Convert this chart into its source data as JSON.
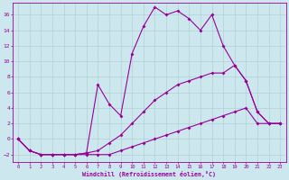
{
  "xlabel": "Windchill (Refroidissement éolien,°C)",
  "bg_color": "#cce8ee",
  "line_color": "#990099",
  "grid_color": "#aacccc",
  "xlim": [
    -0.5,
    23.5
  ],
  "ylim": [
    -3.0,
    17.5
  ],
  "xticks": [
    0,
    1,
    2,
    3,
    4,
    5,
    6,
    7,
    8,
    9,
    10,
    11,
    12,
    13,
    14,
    15,
    16,
    17,
    18,
    19,
    20,
    21,
    22,
    23
  ],
  "yticks": [
    -2,
    0,
    2,
    4,
    6,
    8,
    10,
    12,
    14,
    16
  ],
  "line1_x": [
    0,
    1,
    2,
    3,
    4,
    5,
    6,
    7,
    8,
    9,
    10,
    11,
    12,
    13,
    14,
    15,
    16,
    17,
    18,
    19,
    20,
    21,
    22,
    23
  ],
  "line1_y": [
    0.0,
    -1.5,
    -2.0,
    -2.0,
    -2.0,
    -2.0,
    -2.0,
    -2.0,
    -2.0,
    -1.5,
    -1.0,
    -0.5,
    0.0,
    0.5,
    1.0,
    1.5,
    2.0,
    2.5,
    3.0,
    3.5,
    4.0,
    2.0,
    2.0,
    2.0
  ],
  "line2_x": [
    0,
    1,
    2,
    3,
    4,
    5,
    6,
    7,
    8,
    9,
    10,
    11,
    12,
    13,
    14,
    15,
    16,
    17,
    18,
    19,
    20,
    21,
    22,
    23
  ],
  "line2_y": [
    0.0,
    -1.5,
    -2.0,
    -2.0,
    -2.0,
    -2.0,
    -1.8,
    -1.5,
    -0.5,
    0.5,
    2.0,
    3.5,
    5.0,
    6.0,
    7.0,
    7.5,
    8.0,
    8.5,
    8.5,
    9.5,
    7.5,
    3.5,
    2.0,
    2.0
  ],
  "line3_x": [
    0,
    1,
    2,
    3,
    4,
    5,
    6,
    7,
    8,
    9,
    10,
    11,
    12,
    13,
    14,
    15,
    16,
    17,
    18,
    19,
    20,
    21,
    22,
    23
  ],
  "line3_y": [
    0.0,
    -1.5,
    -2.0,
    -2.0,
    -2.0,
    -2.0,
    -1.8,
    7.0,
    4.5,
    3.0,
    11.0,
    14.5,
    17.0,
    16.0,
    16.5,
    15.5,
    14.0,
    16.0,
    12.0,
    9.5,
    7.5,
    3.5,
    2.0,
    2.0
  ]
}
